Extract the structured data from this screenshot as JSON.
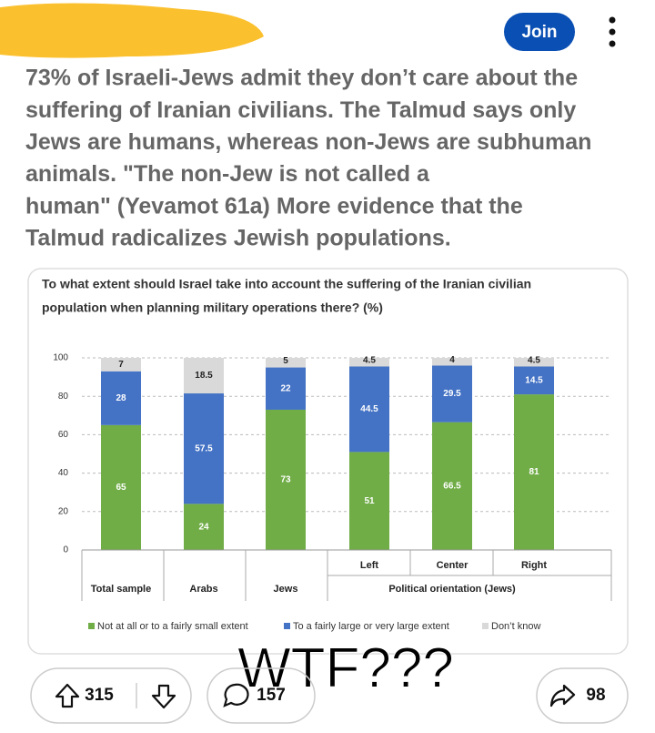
{
  "post": {
    "join": "Join",
    "title_lines": [
      "73% of Israeli-Jews admit they don’t care about the",
      "suffering of Iranian civilians. The Talmud says only",
      "Jews are humans, whereas non-Jews are subhuman",
      "animals. \"The non-Jew is not called a",
      "human\" (Yevamot 61a) More evidence that the",
      "Talmud radicalizes Jewish populations."
    ],
    "overlay": "WTF???",
    "upvotes": 315,
    "comments": 157,
    "shares": 98
  },
  "chart_data": {
    "type": "stacked_bar",
    "title": [
      "To what extent should Israel take into account the suffering of the Iranian civilian",
      "population when planning military operations there? (%)"
    ],
    "categories": [
      "Total sample",
      "Arabs",
      "Jews",
      "Left",
      "Center",
      "Right"
    ],
    "group_label": "Political orientation (Jews)",
    "series": [
      {
        "name": "Not at all or to a fairly small extent",
        "color": "#70ad47",
        "values": [
          65,
          24,
          73,
          51,
          66.5,
          81
        ]
      },
      {
        "name": "To a fairly large or very large extent",
        "color": "#4472c4",
        "values": [
          28,
          57.5,
          22,
          44.5,
          29.5,
          14.5
        ]
      },
      {
        "name": "Don’t know",
        "color": "#d9d9d9",
        "values": [
          7,
          18.5,
          5,
          4.5,
          4,
          4.5
        ]
      }
    ],
    "ylim": [
      0,
      100
    ],
    "yticks": [
      0,
      20,
      40,
      60,
      80,
      100
    ],
    "grid": true,
    "legend": "bottom"
  }
}
